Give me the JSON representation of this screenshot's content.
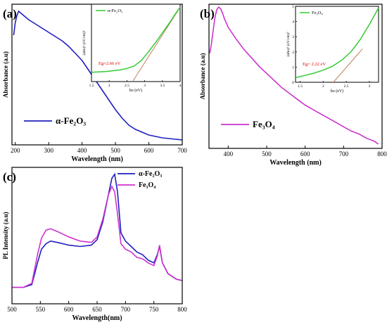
{
  "chart_data": [
    {
      "panel_label": "(a)",
      "type": "line",
      "xlabel": "Wavelength (nm)",
      "ylabel": "Absorbance (a.u)",
      "xlim": [
        190,
        700
      ],
      "xticks": [
        200,
        300,
        400,
        500,
        600,
        700
      ],
      "ylim": [
        0,
        1
      ],
      "legend": {
        "position": "bottom-left",
        "label": "α-Fe₂O₃"
      },
      "series": [
        {
          "name": "α-Fe₂O₃",
          "color": "#1f1fbf",
          "x": [
            195,
            200,
            205,
            210,
            220,
            240,
            260,
            280,
            300,
            320,
            340,
            360,
            380,
            400,
            420,
            440,
            460,
            480,
            500,
            520,
            540,
            560,
            580,
            600,
            620,
            640,
            660,
            680,
            700
          ],
          "y": [
            0.78,
            0.87,
            0.92,
            0.95,
            0.93,
            0.89,
            0.86,
            0.83,
            0.8,
            0.77,
            0.74,
            0.7,
            0.65,
            0.6,
            0.53,
            0.46,
            0.39,
            0.32,
            0.25,
            0.19,
            0.14,
            0.11,
            0.09,
            0.07,
            0.06,
            0.05,
            0.045,
            0.04,
            0.035
          ]
        }
      ],
      "inset": {
        "type": "line",
        "xlabel": "hυ (eV)",
        "ylabel": "(αhυ)² (eV/cm)²",
        "xlim": [
          1.5,
          4.0
        ],
        "xticks": [
          1.5,
          2.0,
          2.5,
          3.0,
          3.5,
          4.0
        ],
        "ylim": [
          0,
          1
        ],
        "legend": "α-Fe₂O₃",
        "annotation": "Eg=2.66 eV",
        "annotation_color": "#e00000",
        "series_color": "#33cc33",
        "fit_color": "#c08060",
        "x": [
          1.5,
          1.7,
          1.9,
          2.1,
          2.3,
          2.5,
          2.7,
          2.9,
          3.1,
          3.3,
          3.5,
          3.7,
          3.9,
          4.0
        ],
        "y": [
          0.12,
          0.125,
          0.13,
          0.14,
          0.15,
          0.17,
          0.2,
          0.27,
          0.38,
          0.5,
          0.63,
          0.76,
          0.9,
          0.96
        ],
        "fit": {
          "x": [
            2.66,
            4.0
          ],
          "y": [
            0.0,
            0.96
          ]
        }
      }
    },
    {
      "panel_label": "(b)",
      "type": "line",
      "xlabel": "Wavelength (nm)",
      "ylabel": "Absorbance (a.u)",
      "xlim": [
        350,
        800
      ],
      "xticks": [
        400,
        500,
        600,
        700,
        800
      ],
      "ylim": [
        0,
        1
      ],
      "legend": {
        "position": "bottom-left",
        "label": "Fe₃O₄"
      },
      "series": [
        {
          "name": "Fe₃O₄",
          "color": "#cc33cc",
          "x": [
            352,
            356,
            360,
            365,
            370,
            375,
            380,
            385,
            390,
            400,
            420,
            440,
            460,
            480,
            500,
            520,
            540,
            560,
            580,
            600,
            620,
            640,
            660,
            680,
            700,
            720,
            740,
            760,
            780,
            790
          ],
          "y": [
            0.66,
            0.72,
            0.8,
            0.9,
            0.96,
            0.98,
            0.97,
            0.94,
            0.9,
            0.84,
            0.76,
            0.69,
            0.63,
            0.57,
            0.52,
            0.47,
            0.42,
            0.38,
            0.34,
            0.3,
            0.27,
            0.24,
            0.21,
            0.18,
            0.15,
            0.12,
            0.1,
            0.07,
            0.05,
            0.03
          ]
        }
      ],
      "inset": {
        "type": "line",
        "xlabel": "hυ (eV)",
        "ylabel": "(αhυ)² (eV/cm)²",
        "xlim": [
          1.4,
          3.2
        ],
        "xticks": [
          1.5,
          2.0,
          2.5,
          3.0
        ],
        "ylim": [
          0,
          5
        ],
        "yticks": [
          0,
          1,
          2,
          3,
          4,
          5
        ],
        "legend": "Fe₃O₄",
        "annotation": "Eg= 2.22 eV",
        "annotation_color": "#e00000",
        "series_color": "#33cc33",
        "fit_color": "#c08060",
        "x": [
          1.4,
          1.6,
          1.8,
          2.0,
          2.2,
          2.4,
          2.6,
          2.8,
          3.0,
          3.2
        ],
        "y": [
          0.3,
          0.45,
          0.6,
          0.8,
          1.05,
          1.45,
          2.0,
          2.8,
          3.8,
          4.9
        ],
        "fit": {
          "x": [
            2.22,
            2.85
          ],
          "y": [
            0.0,
            2.2
          ]
        }
      }
    },
    {
      "panel_label": "(c)",
      "type": "line",
      "xlabel": "Wavelength(nm)",
      "ylabel": "PL Intensity (a.u)",
      "xlim": [
        500,
        800
      ],
      "xticks": [
        500,
        550,
        600,
        650,
        700,
        750,
        800
      ],
      "ylim": [
        0,
        1
      ],
      "legend": {
        "position": "top-right"
      },
      "series": [
        {
          "name": "α-Fe₂O₃",
          "color": "#1f1fbf",
          "x": [
            500,
            520,
            535,
            545,
            552,
            560,
            568,
            580,
            600,
            620,
            640,
            650,
            660,
            670,
            676,
            681,
            686,
            692,
            700,
            710,
            720,
            730,
            740,
            750,
            756,
            760,
            765,
            775,
            790,
            800
          ],
          "y": [
            0.12,
            0.12,
            0.14,
            0.3,
            0.4,
            0.44,
            0.46,
            0.45,
            0.43,
            0.42,
            0.43,
            0.47,
            0.6,
            0.8,
            0.92,
            0.95,
            0.82,
            0.52,
            0.46,
            0.42,
            0.38,
            0.36,
            0.32,
            0.3,
            0.36,
            0.42,
            0.3,
            0.22,
            0.18,
            0.17
          ]
        },
        {
          "name": "Fe₃O₄",
          "color": "#cc33cc",
          "x": [
            500,
            520,
            535,
            545,
            552,
            560,
            568,
            580,
            600,
            620,
            640,
            650,
            660,
            670,
            676,
            681,
            686,
            692,
            700,
            710,
            720,
            730,
            740,
            750,
            756,
            760,
            765,
            775,
            790,
            800
          ],
          "y": [
            0.12,
            0.12,
            0.15,
            0.36,
            0.48,
            0.54,
            0.55,
            0.53,
            0.49,
            0.46,
            0.45,
            0.49,
            0.62,
            0.8,
            0.86,
            0.82,
            0.66,
            0.44,
            0.4,
            0.38,
            0.34,
            0.33,
            0.3,
            0.28,
            0.35,
            0.43,
            0.3,
            0.22,
            0.18,
            0.17
          ]
        }
      ]
    }
  ]
}
